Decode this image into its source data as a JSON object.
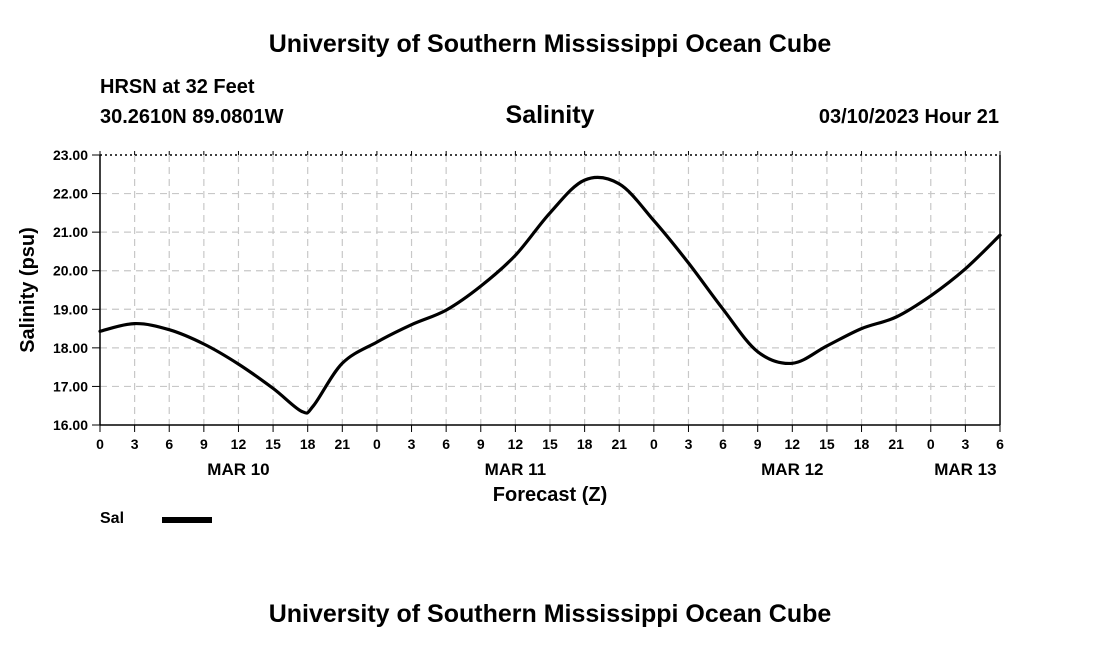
{
  "header": {
    "title": "University of Southern Mississippi Ocean Cube",
    "station": "HRSN at 32 Feet",
    "coordinates": "30.2610N  89.0801W",
    "subtitle": "Salinity",
    "datetime": "03/10/2023 Hour 21"
  },
  "footer": {
    "title": "University of Southern Mississippi Ocean Cube"
  },
  "legend": {
    "label": "Sal"
  },
  "colors": {
    "line": "#000000",
    "grid": "#c8c8c8",
    "axis": "#000000"
  },
  "chart_data": {
    "type": "line",
    "title": "Salinity",
    "xlabel": "Forecast (Z)",
    "ylabel": "Salinity (psu)",
    "ylim": [
      16,
      23
    ],
    "xlim_hours": [
      0,
      78
    ],
    "x_tick_step_hours": 3,
    "grid": true,
    "y_ticks": [
      "16.00",
      "17.00",
      "18.00",
      "19.00",
      "20.00",
      "21.00",
      "22.00",
      "23.00"
    ],
    "x_tick_labels": [
      "0",
      "3",
      "6",
      "9",
      "12",
      "15",
      "18",
      "21",
      "0",
      "3",
      "6",
      "9",
      "12",
      "15",
      "18",
      "21",
      "0",
      "3",
      "6",
      "9",
      "12",
      "15",
      "18",
      "21",
      "0",
      "3",
      "6"
    ],
    "date_labels": [
      {
        "label": "MAR 10",
        "hour": 12
      },
      {
        "label": "MAR 11",
        "hour": 36
      },
      {
        "label": "MAR 12",
        "hour": 60
      },
      {
        "label": "MAR 13",
        "hour": 75
      }
    ],
    "series": [
      {
        "name": "Sal",
        "x": [
          0,
          3,
          6,
          9,
          12,
          15,
          17.5,
          18.5,
          21,
          24,
          27,
          30,
          33,
          36,
          39,
          42,
          45,
          48,
          51,
          54,
          57,
          60,
          63,
          66,
          69,
          72,
          75,
          78
        ],
        "values": [
          18.43,
          18.63,
          18.47,
          18.1,
          17.58,
          16.95,
          16.35,
          16.5,
          17.6,
          18.15,
          18.6,
          18.98,
          19.6,
          20.4,
          21.5,
          22.35,
          22.25,
          21.3,
          20.2,
          19.0,
          17.9,
          17.6,
          18.05,
          18.5,
          18.8,
          19.35,
          20.05,
          20.92
        ]
      }
    ]
  }
}
